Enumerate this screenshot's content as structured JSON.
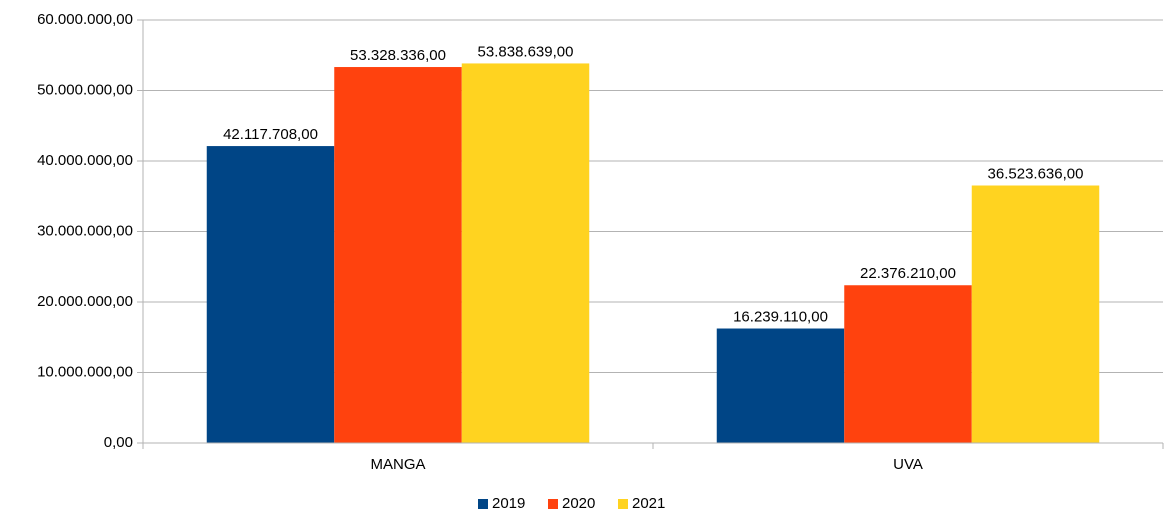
{
  "chart_data": {
    "type": "bar",
    "categories": [
      "MANGA",
      "UVA"
    ],
    "series": [
      {
        "name": "2019",
        "color": "#004586",
        "values": [
          42117708,
          16239110
        ],
        "value_labels": [
          "42.117.708,00",
          "16.239.110,00"
        ]
      },
      {
        "name": "2020",
        "color": "#ff420e",
        "values": [
          53328336,
          22376210
        ],
        "value_labels": [
          "53.328.336,00",
          "22.376.210,00"
        ]
      },
      {
        "name": "2021",
        "color": "#ffd320",
        "values": [
          53838639,
          36523636
        ],
        "value_labels": [
          "53.838.639,00",
          "36.523.636,00"
        ]
      }
    ],
    "ylim": [
      0,
      60000000
    ],
    "yticks": [
      {
        "value": 0,
        "label": "0,00"
      },
      {
        "value": 10000000,
        "label": "10.000.000,00"
      },
      {
        "value": 20000000,
        "label": "20.000.000,00"
      },
      {
        "value": 30000000,
        "label": "30.000.000,00"
      },
      {
        "value": 40000000,
        "label": "40.000.000,00"
      },
      {
        "value": 50000000,
        "label": "50.000.000,00"
      },
      {
        "value": 60000000,
        "label": "60.000.000,00"
      }
    ],
    "grid": true,
    "legend": "bottom"
  }
}
